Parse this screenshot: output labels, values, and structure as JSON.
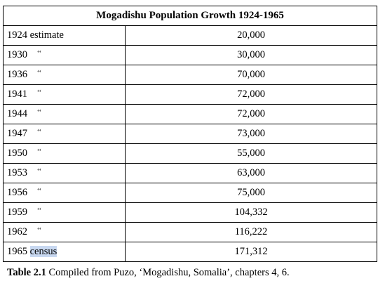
{
  "table": {
    "title": "Mogadishu Population Growth 1924-1965",
    "rows": [
      {
        "year": "1924",
        "note": "estimate",
        "value": "20,000"
      },
      {
        "year": "1930",
        "note": "‘‘",
        "value": "30,000"
      },
      {
        "year": "1936",
        "note": "‘‘",
        "value": "70,000"
      },
      {
        "year": "1941",
        "note": "‘‘",
        "value": "72,000"
      },
      {
        "year": "1944",
        "note": "‘‘",
        "value": "72,000"
      },
      {
        "year": "1947",
        "note": "‘‘",
        "value": "73,000"
      },
      {
        "year": "1950",
        "note": "‘‘",
        "value": "55,000"
      },
      {
        "year": "1953",
        "note": "‘‘",
        "value": "63,000"
      },
      {
        "year": "1956",
        "note": "‘‘",
        "value": "75,000"
      },
      {
        "year": "1959",
        "note": "‘‘",
        "value": "104,332"
      },
      {
        "year": "1962",
        "note": "‘‘",
        "value": "116,222"
      },
      {
        "year": "1965",
        "note": "census",
        "value": "171,312"
      }
    ]
  },
  "caption": {
    "label": "Table 2.1",
    "text": "Compiled from Puzo, ‘Mogadishu, Somalia’, chapters 4, 6."
  }
}
